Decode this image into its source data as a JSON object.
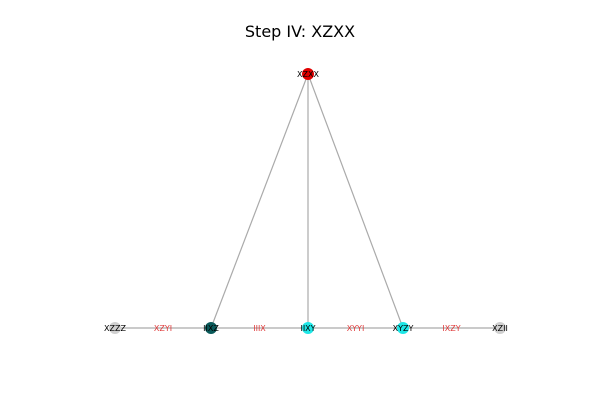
{
  "title": "Step IV: XZXX",
  "colors": {
    "edge": "#aaaaaa",
    "edge_label": "#e03c3c",
    "red": "#e00000",
    "dark_teal": "#0a5a5a",
    "cyan": "#1ee6e6",
    "light_gray": "#d0d0d0"
  },
  "nodes": [
    {
      "id": "top",
      "label": "XZXX",
      "color": "red"
    },
    {
      "id": "n1",
      "label": "XZZZ",
      "color": "light_gray"
    },
    {
      "id": "n2",
      "label": "IIXZ",
      "color": "dark_teal"
    },
    {
      "id": "n3",
      "label": "IIXY",
      "color": "cyan"
    },
    {
      "id": "n4",
      "label": "XYZY",
      "color": "cyan"
    },
    {
      "id": "n5",
      "label": "XZII",
      "color": "light_gray"
    }
  ],
  "edges": [
    {
      "from": "top",
      "to": "n2",
      "label": ""
    },
    {
      "from": "top",
      "to": "n3",
      "label": ""
    },
    {
      "from": "top",
      "to": "n4",
      "label": ""
    },
    {
      "from": "n1",
      "to": "n2",
      "label": "XZYI"
    },
    {
      "from": "n2",
      "to": "n3",
      "label": "IIIX"
    },
    {
      "from": "n3",
      "to": "n4",
      "label": "XYYI"
    },
    {
      "from": "n4",
      "to": "n5",
      "label": "IXZY"
    }
  ]
}
